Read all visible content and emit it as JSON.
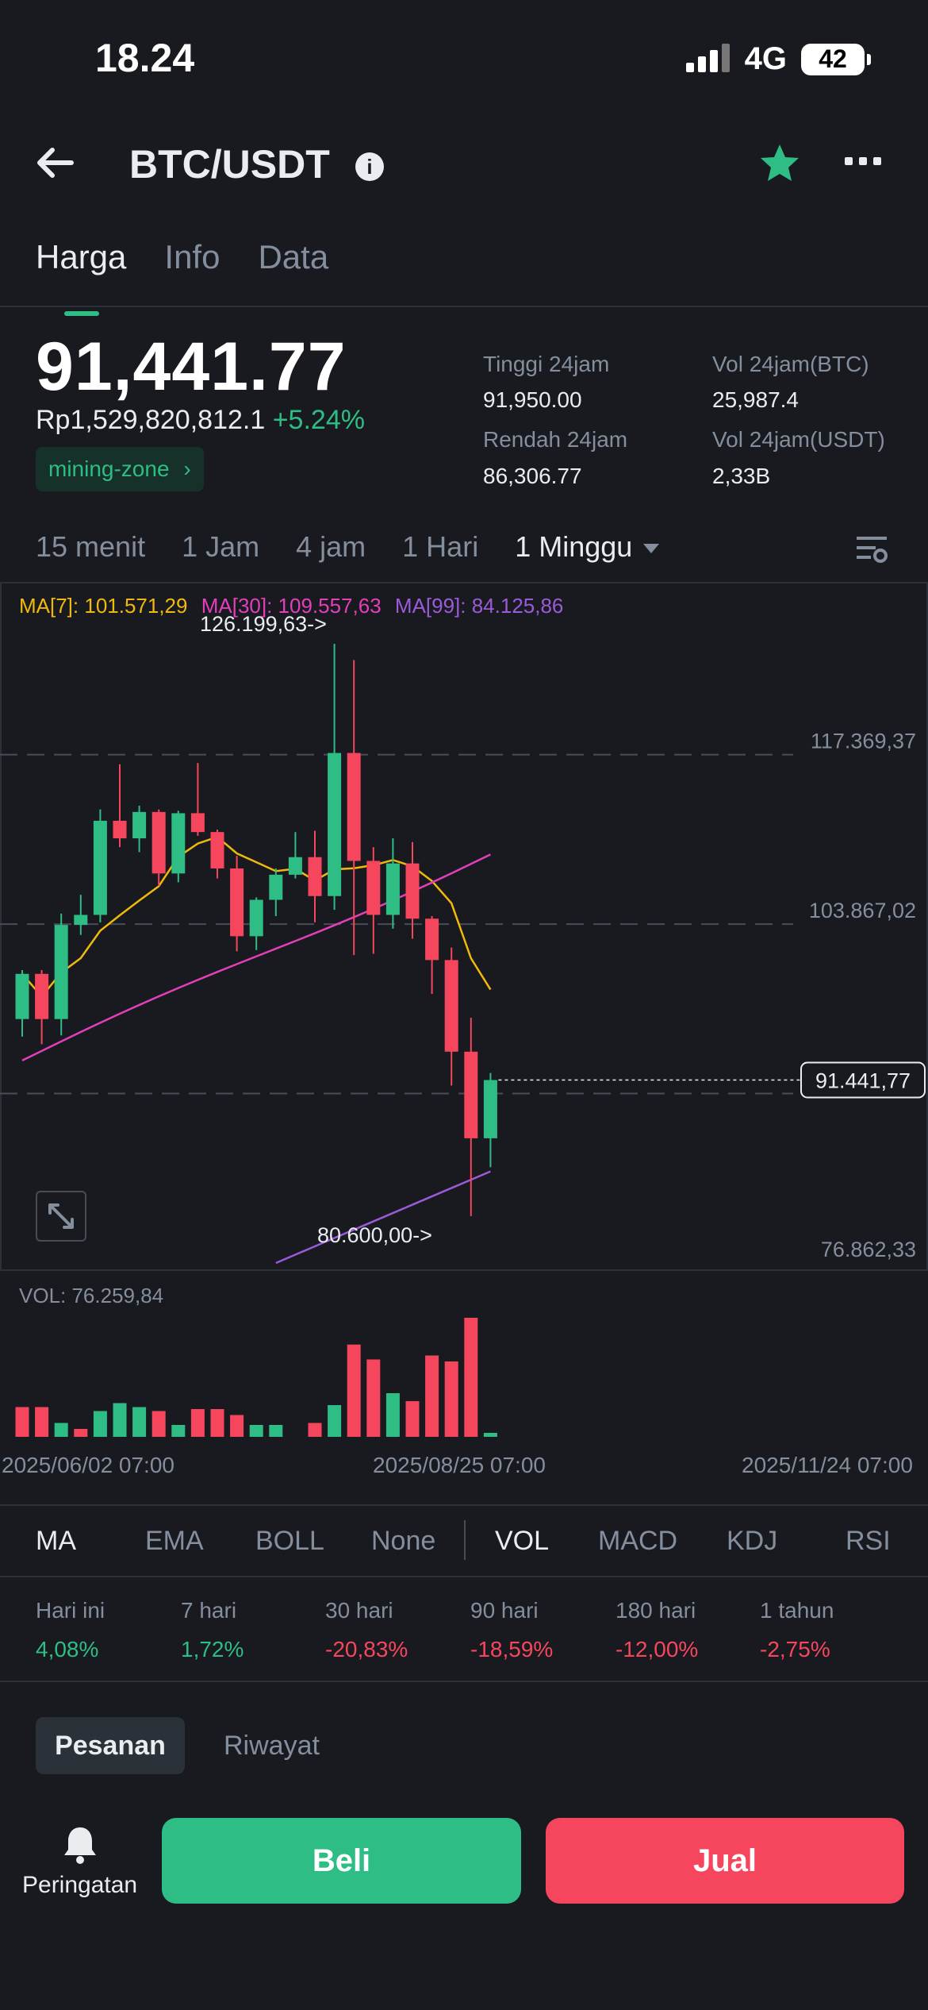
{
  "status": {
    "time": "18.24",
    "network": "4G",
    "battery": "42"
  },
  "header": {
    "title": "BTC/USDT"
  },
  "tabs": [
    {
      "label": "Harga",
      "active": true
    },
    {
      "label": "Info",
      "active": false
    },
    {
      "label": "Data",
      "active": false
    }
  ],
  "price": {
    "last": "91,441.77",
    "idr": "Rp1,529,820,812.1",
    "change": "+5.24%",
    "tag": "mining-zone"
  },
  "stats": {
    "high_label": "Tinggi 24jam",
    "high": "91,950.00",
    "low_label": "Rendah 24jam",
    "low": "86,306.77",
    "volbtc_label": "Vol 24jam(BTC)",
    "volbtc": "25,987.4",
    "volusdt_label": "Vol 24jam(USDT)",
    "volusdt": "2,33B"
  },
  "intervals": [
    "15 menit",
    "1 Jam",
    "4 jam",
    "1 Hari",
    "1 Minggu"
  ],
  "selected_interval": "1 Minggu",
  "ma_legend": {
    "ma7": "MA[7]: 101.571,29",
    "ma30": "MA[30]: 109.557,63",
    "ma99": "MA[99]: 84.125,86"
  },
  "chart_data": {
    "type": "candlestick",
    "y_labels": [
      "117.369,37",
      "103.867,02",
      "76.862,33"
    ],
    "current_price_label": "91.441,77",
    "high_marker": "126.199,63->",
    "low_marker": "80.600,00->",
    "volume_label": "VOL: 76.259,84",
    "x_labels": [
      "2025/06/02 07:00",
      "2025/08/25 07:00",
      "2025/11/24 07:00"
    ],
    "y_axis": {
      "top_price": 126199.63,
      "bottom_price": 76862.33
    },
    "candles": [
      {
        "o": 96300,
        "h": 100200,
        "l": 94900,
        "c": 99900
      },
      {
        "o": 99900,
        "h": 100200,
        "l": 94300,
        "c": 96300
      },
      {
        "o": 96300,
        "h": 104700,
        "l": 95000,
        "c": 103800
      },
      {
        "o": 103800,
        "h": 106200,
        "l": 103000,
        "c": 104600
      },
      {
        "o": 104600,
        "h": 113000,
        "l": 104000,
        "c": 112100
      },
      {
        "o": 112100,
        "h": 116600,
        "l": 110000,
        "c": 110700
      },
      {
        "o": 110700,
        "h": 113300,
        "l": 109600,
        "c": 112800
      },
      {
        "o": 112800,
        "h": 113000,
        "l": 106900,
        "c": 107900
      },
      {
        "o": 107900,
        "h": 112900,
        "l": 107200,
        "c": 112700
      },
      {
        "o": 112700,
        "h": 116700,
        "l": 110900,
        "c": 111200
      },
      {
        "o": 111200,
        "h": 111400,
        "l": 107500,
        "c": 108300
      },
      {
        "o": 108300,
        "h": 109300,
        "l": 101700,
        "c": 102900
      },
      {
        "o": 102900,
        "h": 106000,
        "l": 101800,
        "c": 105800
      },
      {
        "o": 105800,
        "h": 108300,
        "l": 104500,
        "c": 107800
      },
      {
        "o": 107800,
        "h": 111200,
        "l": 107500,
        "c": 109200
      },
      {
        "o": 109200,
        "h": 111300,
        "l": 104000,
        "c": 106100
      },
      {
        "o": 106100,
        "h": 126200,
        "l": 105000,
        "c": 117500
      },
      {
        "o": 117500,
        "h": 124900,
        "l": 101400,
        "c": 108900
      },
      {
        "o": 108900,
        "h": 110000,
        "l": 101500,
        "c": 104600
      },
      {
        "o": 104600,
        "h": 110700,
        "l": 103500,
        "c": 108700
      },
      {
        "o": 108700,
        "h": 110400,
        "l": 102700,
        "c": 104300
      },
      {
        "o": 104300,
        "h": 104500,
        "l": 98300,
        "c": 101000
      },
      {
        "o": 101000,
        "h": 102000,
        "l": 91000,
        "c": 93700
      },
      {
        "o": 93700,
        "h": 96400,
        "l": 80600,
        "c": 86800
      },
      {
        "o": 86800,
        "h": 92000,
        "l": 84500,
        "c": 91441.77
      }
    ],
    "volume": [
      {
        "v": 30,
        "up": false
      },
      {
        "v": 30,
        "up": false
      },
      {
        "v": 14,
        "up": true
      },
      {
        "v": 8,
        "up": false
      },
      {
        "v": 26,
        "up": true
      },
      {
        "v": 34,
        "up": true
      },
      {
        "v": 30,
        "up": true
      },
      {
        "v": 26,
        "up": false
      },
      {
        "v": 12,
        "up": true
      },
      {
        "v": 28,
        "up": false
      },
      {
        "v": 28,
        "up": false
      },
      {
        "v": 22,
        "up": false
      },
      {
        "v": 12,
        "up": true
      },
      {
        "v": 12,
        "up": true
      },
      {
        "v": 0,
        "up": true
      },
      {
        "v": 14,
        "up": false
      },
      {
        "v": 32,
        "up": true
      },
      {
        "v": 93,
        "up": false
      },
      {
        "v": 78,
        "up": false
      },
      {
        "v": 44,
        "up": true
      },
      {
        "v": 36,
        "up": false
      },
      {
        "v": 82,
        "up": false
      },
      {
        "v": 76,
        "up": false
      },
      {
        "v": 120,
        "up": false
      },
      {
        "v": 4,
        "up": true
      }
    ]
  },
  "indicators": [
    "MA",
    "EMA",
    "BOLL",
    "None",
    "VOL",
    "MACD",
    "KDJ",
    "RSI"
  ],
  "periods": [
    {
      "label": "Hari ini",
      "value": "4,08%",
      "up": true
    },
    {
      "label": "7 hari",
      "value": "1,72%",
      "up": true
    },
    {
      "label": "30 hari",
      "value": "-20,83%",
      "up": false
    },
    {
      "label": "90 hari",
      "value": "-18,59%",
      "up": false
    },
    {
      "label": "180 hari",
      "value": "-12,00%",
      "up": false
    },
    {
      "label": "1 tahun",
      "value": "-2,75%",
      "up": false
    }
  ],
  "order_tabs": [
    "Pesanan",
    "Riwayat"
  ],
  "bottom": {
    "alert_label": "Peringatan",
    "buy_label": "Beli",
    "sell_label": "Jual"
  },
  "colors": {
    "up": "#2EBD85",
    "down": "#F6465D",
    "ma7": "#F0B90B",
    "ma30": "#E33FBA",
    "ma99": "#9A5BD8"
  }
}
